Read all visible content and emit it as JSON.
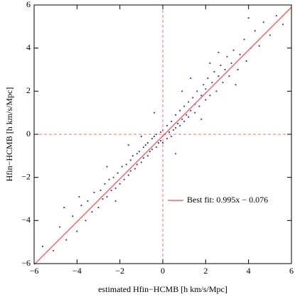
{
  "chart_data": {
    "type": "scatter",
    "xlabel": "estimated Hfin−HCMB  [h km/s/Mpc]",
    "ylabel": "Hfin−HCMB  [h km/s/Mpc]",
    "xlim": [
      -6,
      6
    ],
    "ylim": [
      -6,
      6
    ],
    "xticks": [
      {
        "value": -6,
        "label": "−6"
      },
      {
        "value": -4,
        "label": "−4"
      },
      {
        "value": -2,
        "label": "−2"
      },
      0,
      2,
      4,
      6
    ],
    "yticks": [
      {
        "value": -6,
        "label": "−6"
      },
      {
        "value": -4,
        "label": "−4"
      },
      {
        "value": -2,
        "label": "−2"
      },
      0,
      2,
      4,
      6
    ],
    "reference_lines": {
      "x": 0,
      "y": 0,
      "color": "#f07070"
    },
    "series": [
      {
        "color": "#3a3aa8",
        "x": [
          -5.6,
          -5.1,
          -4.8,
          -4.5,
          -4.2,
          -4.0,
          -3.8,
          -3.6,
          -3.5,
          -3.3,
          -3.2,
          -3.0,
          -2.9,
          -2.8,
          -2.7,
          -2.6,
          -2.5,
          -2.4,
          -2.3,
          -2.2,
          -2.1,
          -2.0,
          -1.9,
          -1.8,
          -1.7,
          -1.6,
          -1.5,
          -1.5,
          -1.4,
          -1.3,
          -1.2,
          -1.2,
          -1.1,
          -1.0,
          -0.9,
          -0.9,
          -0.8,
          -0.7,
          -0.7,
          -0.6,
          -0.5,
          -0.5,
          -0.4,
          -0.3,
          -0.3,
          -0.2,
          -0.1,
          -0.1,
          0.0,
          0.0,
          0.1,
          0.2,
          0.2,
          0.3,
          0.4,
          0.4,
          0.5,
          0.6,
          0.6,
          0.7,
          0.8,
          0.8,
          0.9,
          1.0,
          1.0,
          1.1,
          1.2,
          1.2,
          1.3,
          1.4,
          1.5,
          1.5,
          1.6,
          1.7,
          1.8,
          1.9,
          2.0,
          2.0,
          2.1,
          2.2,
          2.3,
          2.4,
          2.5,
          2.6,
          2.7,
          2.8,
          2.9,
          3.0,
          3.1,
          3.2,
          3.3,
          3.5,
          3.6,
          3.8,
          3.9,
          4.1,
          4.3,
          4.5,
          4.7,
          5.0,
          5.3,
          5.6,
          -3.9,
          -2.2,
          -1.0,
          0.9,
          1.8,
          2.6,
          3.4,
          -0.4,
          0.6,
          -1.6,
          1.3,
          -2.6,
          4.0,
          -4.6,
          2.2
        ],
        "values": [
          -5.2,
          -5.4,
          -4.3,
          -4.9,
          -3.8,
          -4.5,
          -3.3,
          -4.0,
          -3.1,
          -3.6,
          -2.7,
          -3.4,
          -2.6,
          -3.0,
          -2.3,
          -2.9,
          -2.1,
          -2.6,
          -2.0,
          -2.5,
          -1.8,
          -2.3,
          -1.5,
          -2.1,
          -1.4,
          -1.9,
          -1.2,
          -1.7,
          -1.0,
          -1.6,
          -0.9,
          -1.4,
          -0.8,
          -1.3,
          -0.6,
          -1.1,
          -0.5,
          -1.0,
          -0.4,
          -0.8,
          -0.2,
          -0.7,
          -0.1,
          -0.6,
          0.0,
          -0.4,
          0.1,
          -0.3,
          0.2,
          -0.4,
          0.0,
          -0.2,
          0.4,
          0.1,
          -0.1,
          0.6,
          0.2,
          0.9,
          0.3,
          0.5,
          1.1,
          0.4,
          0.7,
          1.3,
          0.6,
          0.9,
          1.5,
          0.8,
          1.1,
          1.7,
          1.0,
          1.4,
          2.0,
          1.3,
          1.8,
          2.3,
          1.6,
          2.1,
          2.6,
          1.8,
          2.4,
          2.9,
          2.0,
          2.7,
          3.2,
          2.4,
          3.0,
          3.6,
          2.7,
          3.3,
          3.9,
          3.0,
          3.7,
          4.4,
          3.4,
          4.0,
          4.8,
          4.1,
          5.2,
          4.6,
          5.5,
          5.1,
          -2.9,
          -3.1,
          -0.1,
          2.0,
          0.7,
          3.8,
          2.3,
          1.0,
          -0.9,
          -0.5,
          2.6,
          -1.5,
          5.4,
          -3.4,
          3.3
        ]
      }
    ],
    "fit": {
      "name": "Best fit: 0.995x − 0.076",
      "color": "#e86b6b",
      "x": [
        -6,
        6
      ],
      "values": [
        -6.046,
        5.894
      ]
    }
  }
}
